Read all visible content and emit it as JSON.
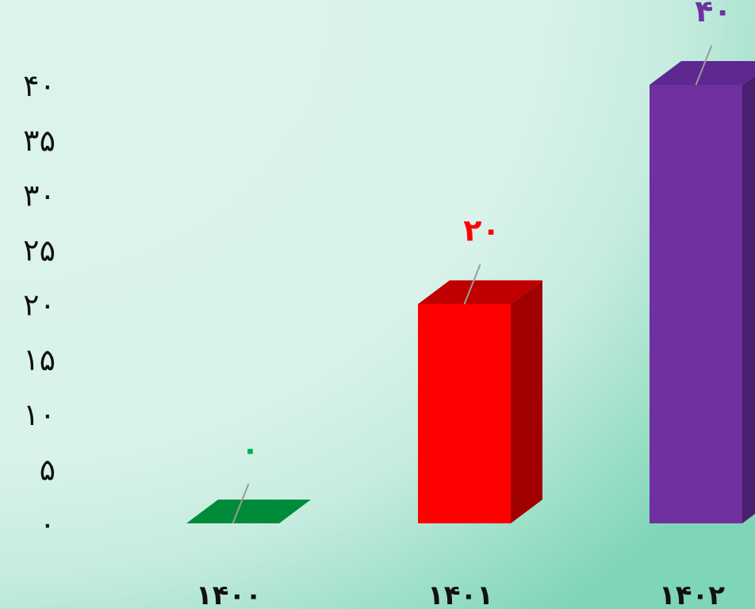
{
  "chart_data": {
    "type": "bar",
    "style": "3d",
    "categories": [
      "۱۴۰۰",
      "۱۴۰۱",
      "۱۴۰۲"
    ],
    "values": [
      0,
      20,
      40
    ],
    "value_labels": [
      "۰",
      "۲۰",
      "۴۰"
    ],
    "ylim": [
      0,
      40
    ],
    "yticks": [
      0,
      5,
      10,
      15,
      20,
      25,
      30,
      35,
      40
    ],
    "ytick_labels": [
      "۰",
      "۵",
      "۱۰",
      "۱۵",
      "۲۰",
      "۲۵",
      "۳۰",
      "۳۵",
      "۴۰"
    ],
    "grid": false,
    "legend": "none",
    "colors": {
      "front": [
        "#008b3b",
        "#ff0000",
        "#7030a0"
      ],
      "top": [
        "#008b3b",
        "#c00000",
        "#5e2890"
      ],
      "side": [
        "#006b2e",
        "#a00000",
        "#4a2070"
      ],
      "value_label": [
        "#00b050",
        "#ff0000",
        "#7030a0"
      ],
      "leader_line": "#9a9a9a",
      "axis_text": "#111111"
    }
  }
}
